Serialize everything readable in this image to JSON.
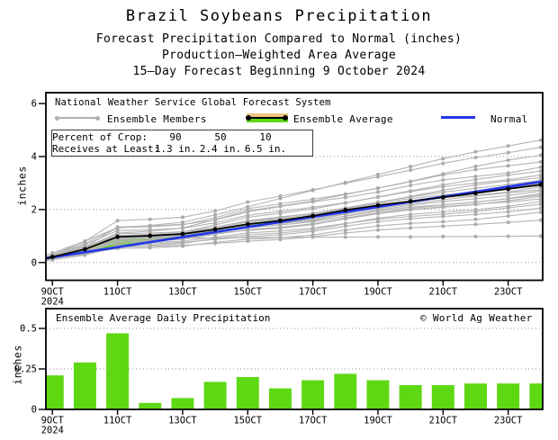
{
  "titles": {
    "main": "Brazil Soybeans Precipitation",
    "sub1": "Forecast Precipitation Compared to Normal (inches)",
    "sub2": "Production—Weighted Area Average",
    "sub3": "15—Day Forecast Beginning 9 October 2024"
  },
  "top_chart_legend": {
    "header": "National Weather Service Global Forecast System",
    "members_label": "Ensemble Members",
    "average_label": "Ensemble Average",
    "normal_label": "Normal"
  },
  "info_box": {
    "row1_label": "Percent of Crop: ",
    "row1_values": [
      "90",
      "50",
      "10"
    ],
    "row2_label": "Receives at Least: ",
    "row2_values": [
      "1.3 in.",
      "2.4 in.",
      "6.5 in."
    ]
  },
  "bottom_chart": {
    "title": "Ensemble Average Daily Precipitation",
    "copyright": "© World Ag Weather"
  },
  "axes": {
    "x_tick_days": [
      9,
      11,
      13,
      15,
      17,
      19,
      21,
      23
    ],
    "x_tick_labels": [
      "9OCT",
      "11OCT",
      "13OCT",
      "15OCT",
      "17OCT",
      "19OCT",
      "21OCT",
      "23OCT"
    ],
    "x_year_label": "2024",
    "top_y_ticks": [
      0,
      2,
      4,
      6
    ],
    "top_y_tick_labels": [
      "0",
      "2",
      "4",
      "6"
    ],
    "bottom_y_ticks": [
      0,
      0.25,
      0.5
    ],
    "bottom_y_tick_labels": [
      "0",
      "0.25",
      "0.5"
    ],
    "y_axis_title": "inches"
  },
  "colors": {
    "green": "#5FD814",
    "tan": "#EFC584",
    "blue": "#2438E8",
    "member_gray": "#b4b4b4",
    "member_dot_gray": "#ababab",
    "grid_gray": "#909090",
    "black": "#000000"
  },
  "chart_data": [
    {
      "type": "line",
      "title": "Forecast accumulated precipitation compared to normal (inches)",
      "x_days_october_2024": [
        9,
        10,
        11,
        12,
        13,
        14,
        15,
        16,
        17,
        18,
        19,
        20,
        21,
        22,
        23,
        24
      ],
      "series": [
        {
          "name": "Ensemble Average",
          "values": [
            0.21,
            0.5,
            0.97,
            1.01,
            1.08,
            1.25,
            1.45,
            1.58,
            1.76,
            1.98,
            2.16,
            2.31,
            2.46,
            2.62,
            2.78,
            2.94
          ]
        },
        {
          "name": "Normal",
          "values": [
            0.2,
            0.39,
            0.58,
            0.77,
            0.96,
            1.15,
            1.34,
            1.53,
            1.72,
            1.91,
            2.1,
            2.29,
            2.48,
            2.67,
            2.86,
            3.05
          ]
        }
      ],
      "ensemble_members": {
        "count": 24,
        "final_values": [
          1.6,
          1.9,
          2.05,
          2.2,
          2.3,
          2.4,
          2.5,
          2.55,
          2.6,
          2.7,
          2.75,
          2.85,
          2.9,
          3.0,
          3.1,
          3.2,
          3.3,
          3.45,
          3.6,
          3.8,
          4.05,
          4.35
        ],
        "explicit_members": [
          [
            0.25,
            0.55,
            0.85,
            0.9,
            0.92,
            0.93,
            0.94,
            0.95,
            0.96,
            0.96,
            0.97,
            0.97,
            0.98,
            0.98,
            0.99,
            1.0
          ],
          [
            0.3,
            0.72,
            1.3,
            1.4,
            1.52,
            1.8,
            2.1,
            2.42,
            2.72,
            3.02,
            3.32,
            3.62,
            3.92,
            4.18,
            4.4,
            4.62
          ]
        ]
      },
      "ylabel": "inches",
      "ylim": [
        -0.67,
        6.41
      ],
      "grid_values": [
        0,
        2,
        4
      ],
      "legend_position": "top-left-inside"
    },
    {
      "type": "bar",
      "title": "Ensemble Average Daily Precipitation",
      "x_days_october_2024": [
        9,
        10,
        11,
        12,
        13,
        14,
        15,
        16,
        17,
        18,
        19,
        20,
        21,
        22,
        23,
        24
      ],
      "values": [
        0.21,
        0.29,
        0.47,
        0.04,
        0.07,
        0.17,
        0.2,
        0.13,
        0.18,
        0.22,
        0.18,
        0.15,
        0.15,
        0.16,
        0.16,
        0.16
      ],
      "ylabel": "inches",
      "ylim": [
        0,
        0.622
      ],
      "grid_values": [
        0.25,
        0.5
      ]
    }
  ]
}
